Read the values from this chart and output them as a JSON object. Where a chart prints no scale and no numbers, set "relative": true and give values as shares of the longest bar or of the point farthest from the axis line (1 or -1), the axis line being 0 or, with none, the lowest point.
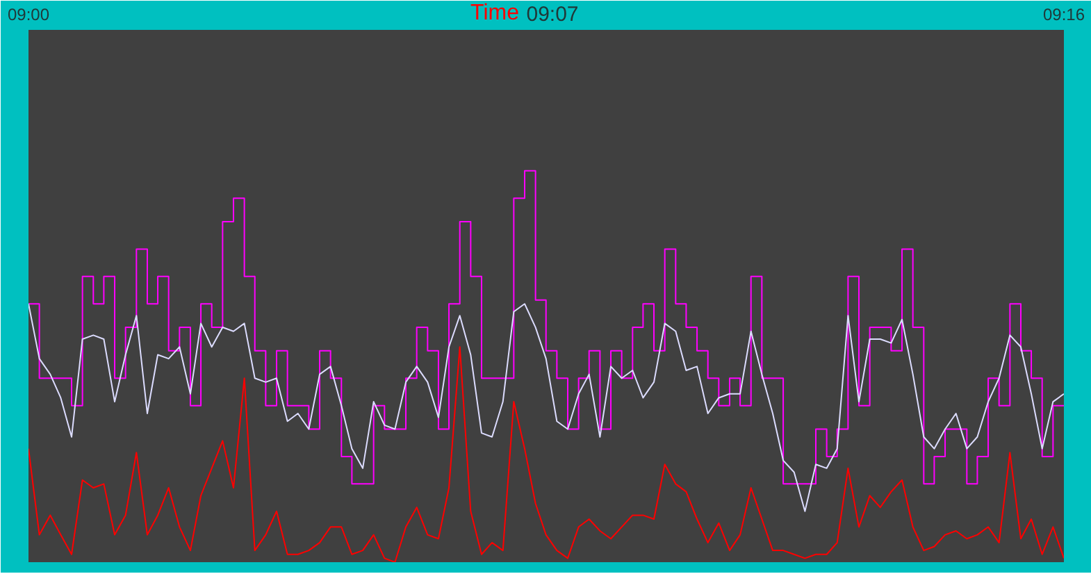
{
  "chart_data": {
    "type": "line",
    "xlabel": "Time",
    "annotations": [
      "09:07"
    ],
    "relative": true,
    "xlim": [
      9,
      9.2667
    ],
    "xticks": [
      {
        "value": 9,
        "label": "09:00"
      },
      {
        "value": 9.2667,
        "label": "09:16"
      }
    ],
    "x": [
      9,
      9.0028,
      9.0056,
      9.0083,
      9.0111,
      9.0139,
      9.0167,
      9.0194,
      9.0222,
      9.025,
      9.0278,
      9.0306,
      9.0333,
      9.0361,
      9.0389,
      9.0417,
      9.0444,
      9.0472,
      9.05,
      9.0528,
      9.0556,
      9.0583,
      9.0611,
      9.0639,
      9.0667,
      9.0694,
      9.0722,
      9.075,
      9.0778,
      9.0806,
      9.0833,
      9.0861,
      9.0889,
      9.0917,
      9.0944,
      9.0972,
      9.1,
      9.1028,
      9.1056,
      9.1083,
      9.1111,
      9.1139,
      9.1167,
      9.1194,
      9.1222,
      9.125,
      9.1278,
      9.1306,
      9.1333,
      9.1361,
      9.1389,
      9.1417,
      9.1444,
      9.1472,
      9.15,
      9.1528,
      9.1556,
      9.1583,
      9.1611,
      9.1639,
      9.1667,
      9.1694,
      9.1722,
      9.175,
      9.1778,
      9.1806,
      9.1833,
      9.1861,
      9.1889,
      9.1917,
      9.1944,
      9.1972,
      9.2,
      9.2028,
      9.2056,
      9.2083,
      9.2111,
      9.2139,
      9.2167,
      9.2194,
      9.2222,
      9.225,
      9.2278,
      9.2306,
      9.2333,
      9.2361,
      9.2389,
      9.2417,
      9.2444,
      9.2472,
      9.25,
      9.2528,
      9.2556,
      9.2583,
      9.2611,
      9.2639,
      9.2667
    ],
    "series": [
      {
        "type": "step",
        "color": "#ff00ff",
        "values": [
          0.66,
          0.47,
          0.47,
          0.47,
          0.4,
          0.73,
          0.66,
          0.73,
          0.47,
          0.6,
          0.8,
          0.66,
          0.73,
          0.54,
          0.6,
          0.4,
          0.66,
          0.6,
          0.87,
          0.93,
          0.73,
          0.54,
          0.4,
          0.54,
          0.4,
          0.4,
          0.34,
          0.54,
          0.47,
          0.27,
          0.2,
          0.2,
          0.4,
          0.34,
          0.34,
          0.47,
          0.6,
          0.54,
          0.34,
          0.66,
          0.87,
          0.73,
          0.47,
          0.47,
          0.47,
          0.93,
          1.0,
          0.67,
          0.54,
          0.47,
          0.34,
          0.47,
          0.54,
          0.34,
          0.54,
          0.47,
          0.6,
          0.66,
          0.54,
          0.8,
          0.66,
          0.6,
          0.54,
          0.47,
          0.4,
          0.47,
          0.4,
          0.73,
          0.47,
          0.47,
          0.2,
          0.2,
          0.2,
          0.34,
          0.27,
          0.34,
          0.73,
          0.4,
          0.6,
          0.6,
          0.54,
          0.8,
          0.6,
          0.2,
          0.27,
          0.34,
          0.34,
          0.2,
          0.27,
          0.47,
          0.4,
          0.66,
          0.54,
          0.47,
          0.27,
          0.4,
          0.4
        ]
      },
      {
        "color": "#dcdcff",
        "values": [
          0.66,
          0.52,
          0.48,
          0.42,
          0.32,
          0.57,
          0.58,
          0.57,
          0.41,
          0.53,
          0.63,
          0.38,
          0.53,
          0.52,
          0.55,
          0.43,
          0.61,
          0.55,
          0.6,
          0.59,
          0.61,
          0.47,
          0.46,
          0.47,
          0.36,
          0.38,
          0.34,
          0.48,
          0.5,
          0.4,
          0.29,
          0.24,
          0.41,
          0.35,
          0.34,
          0.46,
          0.5,
          0.46,
          0.37,
          0.55,
          0.63,
          0.53,
          0.33,
          0.32,
          0.41,
          0.64,
          0.66,
          0.6,
          0.52,
          0.36,
          0.34,
          0.43,
          0.48,
          0.32,
          0.5,
          0.47,
          0.49,
          0.42,
          0.46,
          0.61,
          0.59,
          0.49,
          0.5,
          0.38,
          0.42,
          0.43,
          0.43,
          0.59,
          0.48,
          0.38,
          0.26,
          0.23,
          0.13,
          0.25,
          0.24,
          0.29,
          0.63,
          0.41,
          0.57,
          0.57,
          0.56,
          0.62,
          0.48,
          0.32,
          0.29,
          0.34,
          0.38,
          0.29,
          0.32,
          0.41,
          0.47,
          0.58,
          0.55,
          0.43,
          0.29,
          0.41,
          0.43
        ]
      },
      {
        "color": "#ff0000",
        "values": [
          0.29,
          0.07,
          0.12,
          0.07,
          0.02,
          0.21,
          0.19,
          0.2,
          0.07,
          0.12,
          0.28,
          0.07,
          0.12,
          0.19,
          0.09,
          0.03,
          0.17,
          0.24,
          0.31,
          0.19,
          0.47,
          0.03,
          0.07,
          0.13,
          0.02,
          0.02,
          0.03,
          0.05,
          0.09,
          0.09,
          0.02,
          0.03,
          0.07,
          0.01,
          0,
          0.09,
          0.14,
          0.07,
          0.06,
          0.19,
          0.55,
          0.13,
          0.02,
          0.05,
          0.03,
          0.41,
          0.29,
          0.15,
          0.07,
          0.03,
          0.01,
          0.09,
          0.11,
          0.08,
          0.06,
          0.09,
          0.12,
          0.12,
          0.11,
          0.25,
          0.2,
          0.18,
          0.11,
          0.05,
          0.1,
          0.03,
          0.07,
          0.19,
          0.11,
          0.03,
          0.03,
          0.02,
          0.01,
          0.02,
          0.02,
          0.05,
          0.24,
          0.09,
          0.17,
          0.14,
          0.18,
          0.21,
          0.09,
          0.03,
          0.04,
          0.07,
          0.08,
          0.06,
          0.07,
          0.09,
          0.05,
          0.28,
          0.06,
          0.11,
          0.02,
          0.09,
          0.01
        ]
      }
    ]
  }
}
